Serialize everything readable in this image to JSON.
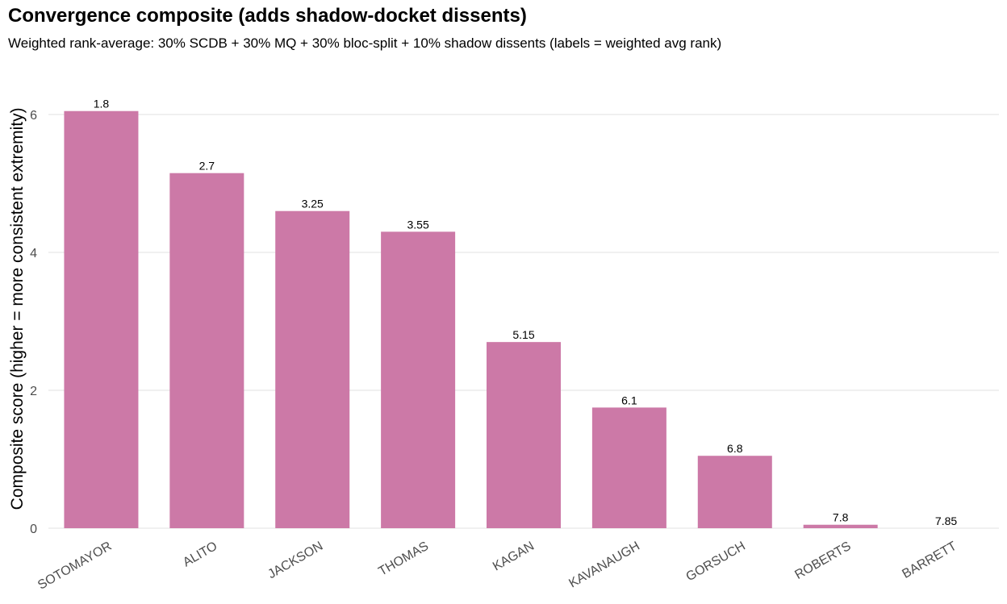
{
  "chart_data": {
    "type": "bar",
    "title": "Convergence composite (adds shadow-docket dissents)",
    "subtitle": "Weighted rank-average: 30% SCDB + 30% MQ + 30% bloc-split + 10% shadow dissents (labels = weighted avg rank)",
    "xlabel": "",
    "ylabel": "Composite score (higher = more consistent extremity)",
    "categories": [
      "SOTOMAYOR",
      "ALITO",
      "JACKSON",
      "THOMAS",
      "KAGAN",
      "KAVANAUGH",
      "GORSUCH",
      "ROBERTS",
      "BARRETT"
    ],
    "values": [
      6.05,
      5.15,
      4.6,
      4.3,
      2.7,
      1.75,
      1.05,
      0.05,
      0.0
    ],
    "data_labels": [
      "1.8",
      "2.7",
      "3.25",
      "3.55",
      "5.15",
      "6.1",
      "6.8",
      "7.8",
      "7.85"
    ],
    "y_ticks": [
      "0",
      "2",
      "4",
      "6"
    ],
    "ylim": [
      0,
      6.6
    ],
    "grid": true,
    "legend": "none",
    "bar_color": "#cc79a7",
    "grid_color": "#ebebeb"
  }
}
